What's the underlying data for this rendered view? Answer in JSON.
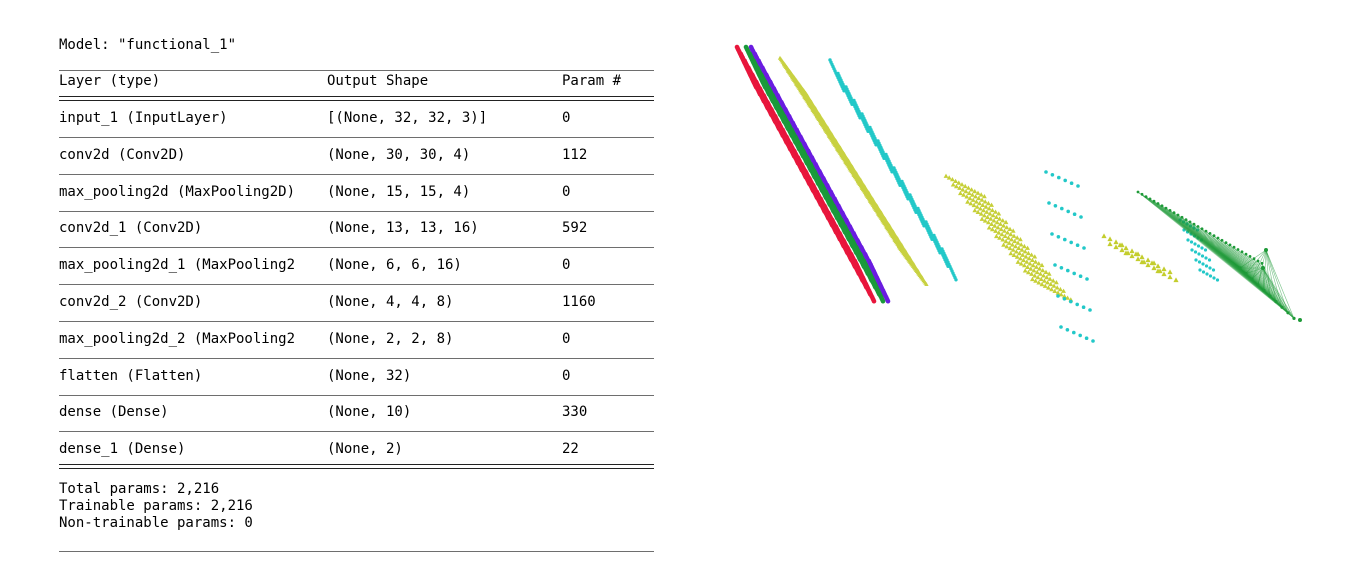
{
  "model": {
    "title": "Model: \"functional_1\"",
    "headers": {
      "layer": "Layer (type)",
      "shape": "Output Shape",
      "params": "Param #"
    },
    "layers": [
      {
        "name": "input_1 (InputLayer)",
        "shape": "[(None, 32, 32, 3)]",
        "params": "0"
      },
      {
        "name": "conv2d (Conv2D)",
        "shape": "(None, 30, 30, 4)",
        "params": "112"
      },
      {
        "name": "max_pooling2d (MaxPooling2D)",
        "shape": "(None, 15, 15, 4)",
        "params": "0"
      },
      {
        "name": "conv2d_1 (Conv2D)",
        "shape": "(None, 13, 13, 16)",
        "params": "592"
      },
      {
        "name": "max_pooling2d_1 (MaxPooling2",
        "shape": "(None, 6, 6, 16)",
        "params": "0"
      },
      {
        "name": "conv2d_2 (Conv2D)",
        "shape": "(None, 4, 4, 8)",
        "params": "1160"
      },
      {
        "name": "max_pooling2d_2 (MaxPooling2",
        "shape": "(None, 2, 2, 8)",
        "params": "0"
      },
      {
        "name": "flatten (Flatten)",
        "shape": "(None, 32)",
        "params": "0"
      },
      {
        "name": "dense (Dense)",
        "shape": "(None, 10)",
        "params": "330"
      },
      {
        "name": "dense_1 (Dense)",
        "shape": "(None, 2)",
        "params": "22"
      }
    ],
    "total_params": "Total params: 2,216",
    "trainable_params": "Trainable params: 2,216",
    "non_trainable_params": "Non-trainable params: 0"
  },
  "visualization": {
    "colors": {
      "input_red": "#e8163c",
      "input_green": "#1a9a3a",
      "input_blue": "#6a1de0",
      "conv_yellow": "#c3cd2d",
      "pool_cyan": "#22c8c8",
      "dense_green": "#1e9a38"
    }
  }
}
